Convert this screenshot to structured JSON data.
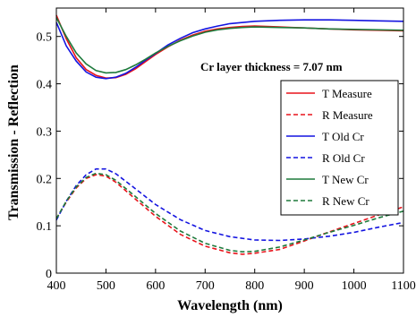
{
  "chart_data": {
    "type": "line",
    "title": "",
    "xlabel": "Wavelength (nm)",
    "ylabel": "Transmission - Reflection",
    "xlim": [
      400,
      1100
    ],
    "ylim": [
      0,
      0.56
    ],
    "xticks": [
      400,
      500,
      600,
      700,
      800,
      900,
      1000,
      1100
    ],
    "xtick_labels": [
      "400",
      "500",
      "600",
      "700",
      "800",
      "900",
      "1000",
      "1100"
    ],
    "yticks": [
      0,
      0.1,
      0.2,
      0.3,
      0.4,
      0.5
    ],
    "ytick_labels": [
      "0",
      "0.1",
      "0.2",
      "0.3",
      "0.4",
      "0.5"
    ],
    "grid": false,
    "legend_position": "right",
    "annotation": "Cr layer thickness = 7.07 nm",
    "series": [
      {
        "name": "T Measure",
        "color": "#e8141c",
        "dash": "solid",
        "points": [
          [
            400,
            0.545
          ],
          [
            420,
            0.495
          ],
          [
            440,
            0.455
          ],
          [
            460,
            0.43
          ],
          [
            480,
            0.418
          ],
          [
            500,
            0.412
          ],
          [
            520,
            0.413
          ],
          [
            540,
            0.42
          ],
          [
            560,
            0.432
          ],
          [
            580,
            0.447
          ],
          [
            600,
            0.462
          ],
          [
            625,
            0.478
          ],
          [
            650,
            0.492
          ],
          [
            675,
            0.503
          ],
          [
            700,
            0.511
          ],
          [
            725,
            0.516
          ],
          [
            750,
            0.519
          ],
          [
            775,
            0.521
          ],
          [
            800,
            0.522
          ],
          [
            825,
            0.521
          ],
          [
            850,
            0.52
          ],
          [
            875,
            0.519
          ],
          [
            900,
            0.518
          ],
          [
            950,
            0.516
          ],
          [
            1000,
            0.514
          ],
          [
            1050,
            0.513
          ],
          [
            1100,
            0.512
          ]
        ]
      },
      {
        "name": "R Measure",
        "color": "#e8141c",
        "dash": "dashed",
        "points": [
          [
            400,
            0.115
          ],
          [
            420,
            0.15
          ],
          [
            440,
            0.18
          ],
          [
            460,
            0.2
          ],
          [
            480,
            0.208
          ],
          [
            500,
            0.205
          ],
          [
            520,
            0.192
          ],
          [
            550,
            0.165
          ],
          [
            600,
            0.12
          ],
          [
            650,
            0.082
          ],
          [
            700,
            0.057
          ],
          [
            750,
            0.043
          ],
          [
            775,
            0.04
          ],
          [
            800,
            0.042
          ],
          [
            850,
            0.05
          ],
          [
            900,
            0.068
          ],
          [
            950,
            0.087
          ],
          [
            1000,
            0.105
          ],
          [
            1050,
            0.123
          ],
          [
            1100,
            0.14
          ]
        ]
      },
      {
        "name": "T Old Cr",
        "color": "#1414e0",
        "dash": "solid",
        "points": [
          [
            400,
            0.53
          ],
          [
            420,
            0.48
          ],
          [
            440,
            0.448
          ],
          [
            460,
            0.425
          ],
          [
            480,
            0.414
          ],
          [
            500,
            0.411
          ],
          [
            520,
            0.414
          ],
          [
            540,
            0.422
          ],
          [
            560,
            0.435
          ],
          [
            580,
            0.45
          ],
          [
            600,
            0.464
          ],
          [
            625,
            0.482
          ],
          [
            650,
            0.496
          ],
          [
            675,
            0.508
          ],
          [
            700,
            0.516
          ],
          [
            725,
            0.522
          ],
          [
            750,
            0.527
          ],
          [
            800,
            0.532
          ],
          [
            850,
            0.534
          ],
          [
            900,
            0.535
          ],
          [
            950,
            0.535
          ],
          [
            1000,
            0.534
          ],
          [
            1050,
            0.533
          ],
          [
            1100,
            0.532
          ]
        ]
      },
      {
        "name": "R Old Cr",
        "color": "#1414e0",
        "dash": "dashed",
        "points": [
          [
            400,
            0.112
          ],
          [
            420,
            0.152
          ],
          [
            440,
            0.185
          ],
          [
            460,
            0.208
          ],
          [
            480,
            0.22
          ],
          [
            500,
            0.22
          ],
          [
            520,
            0.21
          ],
          [
            550,
            0.186
          ],
          [
            600,
            0.145
          ],
          [
            650,
            0.113
          ],
          [
            700,
            0.09
          ],
          [
            750,
            0.077
          ],
          [
            800,
            0.07
          ],
          [
            850,
            0.069
          ],
          [
            900,
            0.072
          ],
          [
            950,
            0.078
          ],
          [
            1000,
            0.086
          ],
          [
            1050,
            0.097
          ],
          [
            1100,
            0.107
          ]
        ]
      },
      {
        "name": "T New Cr",
        "color": "#1e7a3c",
        "dash": "solid",
        "points": [
          [
            400,
            0.54
          ],
          [
            420,
            0.5
          ],
          [
            440,
            0.465
          ],
          [
            460,
            0.442
          ],
          [
            480,
            0.428
          ],
          [
            500,
            0.423
          ],
          [
            520,
            0.424
          ],
          [
            540,
            0.43
          ],
          [
            560,
            0.44
          ],
          [
            580,
            0.452
          ],
          [
            600,
            0.465
          ],
          [
            625,
            0.479
          ],
          [
            650,
            0.491
          ],
          [
            675,
            0.501
          ],
          [
            700,
            0.509
          ],
          [
            725,
            0.514
          ],
          [
            750,
            0.517
          ],
          [
            775,
            0.519
          ],
          [
            800,
            0.52
          ],
          [
            850,
            0.519
          ],
          [
            900,
            0.518
          ],
          [
            950,
            0.516
          ],
          [
            1000,
            0.515
          ],
          [
            1050,
            0.514
          ],
          [
            1100,
            0.513
          ]
        ]
      },
      {
        "name": "R New Cr",
        "color": "#1e7a3c",
        "dash": "dashed",
        "points": [
          [
            400,
            0.115
          ],
          [
            420,
            0.152
          ],
          [
            440,
            0.182
          ],
          [
            460,
            0.202
          ],
          [
            480,
            0.211
          ],
          [
            500,
            0.208
          ],
          [
            520,
            0.196
          ],
          [
            550,
            0.17
          ],
          [
            600,
            0.126
          ],
          [
            650,
            0.089
          ],
          [
            700,
            0.063
          ],
          [
            750,
            0.048
          ],
          [
            775,
            0.045
          ],
          [
            800,
            0.046
          ],
          [
            850,
            0.055
          ],
          [
            900,
            0.07
          ],
          [
            950,
            0.086
          ],
          [
            1000,
            0.101
          ],
          [
            1050,
            0.117
          ],
          [
            1100,
            0.131
          ]
        ]
      }
    ]
  }
}
